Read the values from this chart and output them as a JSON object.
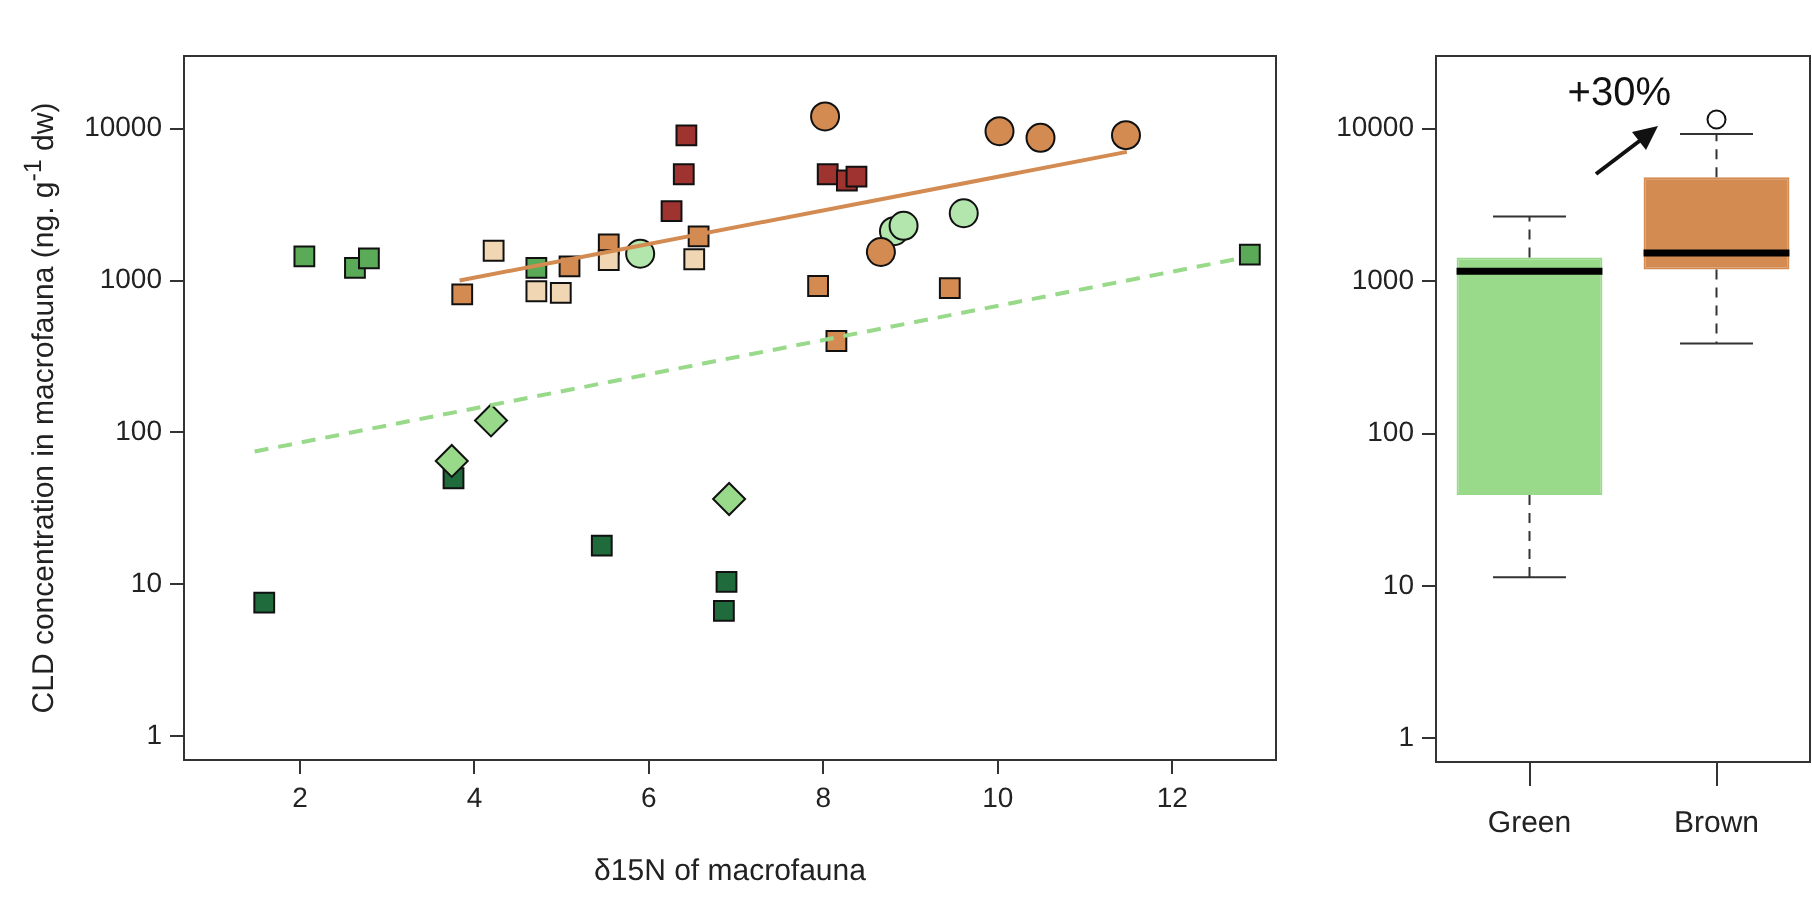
{
  "chart_data": [
    {
      "type": "scatter",
      "xlabel": "δ15N of macrofauna",
      "ylabel": "CLD concentration in macrofauna (ng. g$^{-1}$ dw)",
      "log": "y",
      "grid": false,
      "legend": false,
      "xlim": [
        0.67,
        13.19
      ],
      "xticks": [
        2,
        4,
        6,
        8,
        10,
        12
      ],
      "ylim": [
        0.7,
        30000
      ],
      "yticks": [
        1,
        10,
        100,
        1000,
        10000
      ],
      "series": [
        {
          "type": "scatter",
          "marker": "square",
          "color": "#9e3330",
          "x": [
            6.43,
            6.4,
            6.26,
            8.05,
            8.27,
            8.38
          ],
          "values": [
            9000,
            5000,
            2860,
            5000,
            4550,
            4830
          ]
        },
        {
          "type": "scatter",
          "marker": "square",
          "color": "#d38b52",
          "x": [
            3.86,
            5.09,
            5.54,
            6.57,
            7.94,
            8.15,
            9.45
          ],
          "values": [
            810,
            1240,
            1730,
            1950,
            920,
            400,
            890
          ]
        },
        {
          "type": "scatter",
          "marker": "square",
          "color": "#f0d6b2",
          "x": [
            4.22,
            4.71,
            4.99,
            5.54,
            6.52
          ],
          "values": [
            1570,
            850,
            830,
            1360,
            1380
          ]
        },
        {
          "type": "scatter",
          "marker": "square",
          "color": "#5aaa57",
          "x": [
            2.05,
            2.63,
            2.79,
            4.71,
            12.89
          ],
          "values": [
            1440,
            1210,
            1400,
            1210,
            1480
          ]
        },
        {
          "type": "scatter",
          "marker": "square",
          "color": "#1f6b3c",
          "x": [
            1.59,
            3.76,
            5.46,
            6.89,
            6.86
          ],
          "values": [
            7.6,
            50,
            18,
            10.4,
            6.7
          ]
        },
        {
          "type": "scatter",
          "marker": "diamond",
          "color": "#98d98a",
          "x": [
            4.19,
            3.74,
            6.92
          ],
          "values": [
            120,
            65,
            36.5
          ]
        },
        {
          "type": "scatter",
          "marker": "circle",
          "color": "#b3e6ac",
          "x": [
            5.9,
            8.81,
            8.92,
            9.61
          ],
          "values": [
            1500,
            2110,
            2290,
            2770
          ]
        },
        {
          "type": "scatter",
          "marker": "circle",
          "color": "#d38b52",
          "x": [
            8.02,
            10.02,
            10.49,
            11.47,
            8.66
          ],
          "values": [
            12000,
            9600,
            8680,
            9040,
            1540
          ]
        },
        {
          "type": "line",
          "line_style": "solid",
          "color": "#d38b52",
          "x": [
            3.83,
            11.48
          ],
          "values": [
            1000,
            7020
          ]
        },
        {
          "type": "line",
          "line_style": "dashed",
          "color": "#98d98a",
          "x": [
            1.48,
            12.78
          ],
          "values": [
            75,
            1400
          ]
        }
      ]
    },
    {
      "type": "box",
      "categories": [
        "Green",
        "Brown"
      ],
      "colors": [
        "#98d98a",
        "#d38b52"
      ],
      "log": "y",
      "grid": false,
      "legend": false,
      "ylim": [
        0.7,
        30000
      ],
      "yticks": [
        1,
        10,
        100,
        1000,
        10000
      ],
      "boxes": [
        {
          "low": 11.4,
          "q1": 39.5,
          "median": 1160,
          "q3": 1430,
          "high": 2660
        },
        {
          "low": 390,
          "q1": 1190,
          "median": 1530,
          "q3": 4800,
          "high": 9220,
          "outliers": [
            11500
          ]
        }
      ],
      "annotations": [
        "+30%"
      ]
    }
  ]
}
